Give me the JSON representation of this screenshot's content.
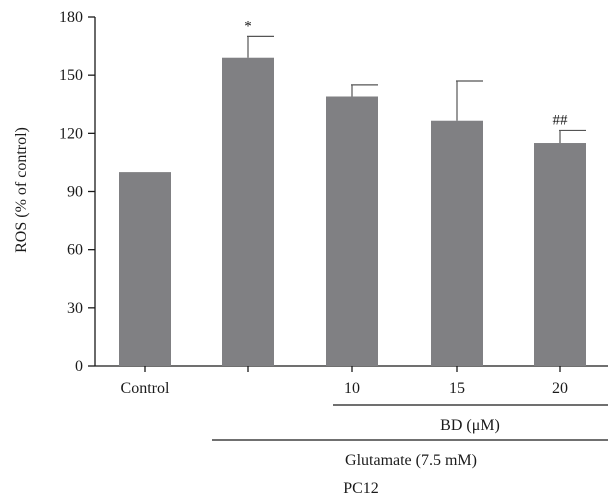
{
  "chart_data": {
    "type": "bar",
    "categories": [
      "Control",
      "",
      "10",
      "15",
      "20"
    ],
    "values": [
      100,
      159,
      139,
      126.5,
      115
    ],
    "error_upper": [
      100,
      170,
      145,
      147,
      121.5
    ],
    "annotations": [
      "",
      "*",
      "",
      "",
      "##"
    ],
    "ylabel": "ROS (% of control)",
    "ylim": [
      0,
      180
    ],
    "yticks": [
      0,
      30,
      60,
      90,
      120,
      150,
      180
    ],
    "grid": false,
    "group_labels": {
      "bd": "BD (μM)",
      "glutamate": "Glutamate (7.5 mM)",
      "cell_line": "PC12"
    },
    "colors": {
      "bar": "#808083",
      "axis": "#1a1a1a"
    }
  }
}
